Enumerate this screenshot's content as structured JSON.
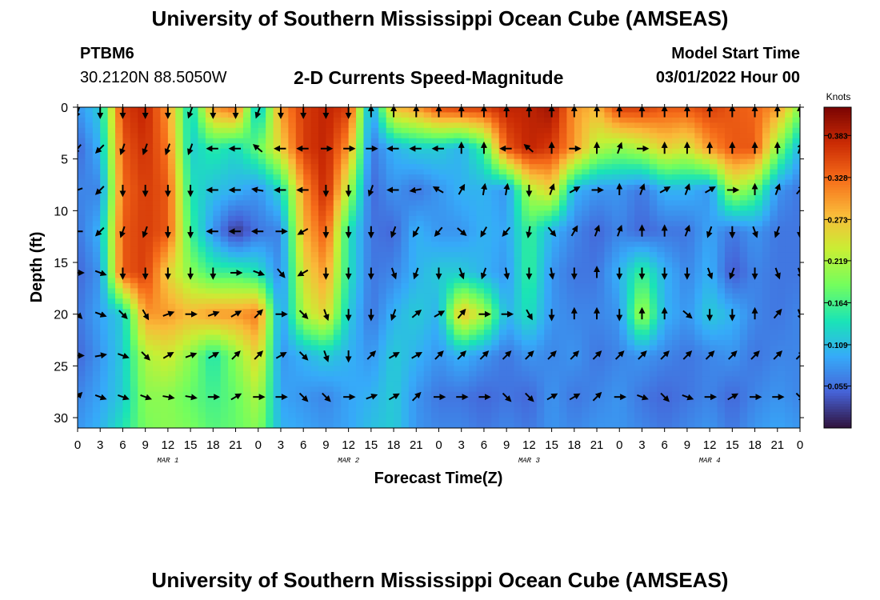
{
  "header": {
    "title": "University of Southern Mississippi Ocean Cube (AMSEAS)",
    "station": "PTBM6",
    "coordinates": "30.2120N  88.5050W",
    "subtitle": "2-D Currents Speed-Magnitude",
    "model_start_label": "Model Start Time",
    "model_start_value": "03/01/2022 Hour 00"
  },
  "footer": {
    "title": "University of Southern Mississippi Ocean Cube (AMSEAS)"
  },
  "chart_data": {
    "type": "heatmap",
    "title": "2-D Currents Speed-Magnitude",
    "xlabel": "Forecast Time(Z)",
    "ylabel": "Depth (ft)",
    "x_hours": [
      0,
      96
    ],
    "ylim": [
      0,
      31
    ],
    "y_inverted": true,
    "x_ticks": [
      "0",
      "3",
      "6",
      "9",
      "12",
      "15",
      "18",
      "21",
      "0",
      "3",
      "6",
      "9",
      "12",
      "15",
      "18",
      "21",
      "0",
      "3",
      "6",
      "9",
      "12",
      "15",
      "18",
      "21",
      "0",
      "3",
      "6",
      "9",
      "12",
      "15",
      "18",
      "21",
      "0"
    ],
    "y_ticks": [
      0,
      5,
      10,
      15,
      20,
      25,
      30
    ],
    "day_labels": [
      {
        "label": "MAR 1",
        "hour": 12
      },
      {
        "label": "MAR 2",
        "hour": 36
      },
      {
        "label": "MAR 3",
        "hour": 60
      },
      {
        "label": "MAR 4",
        "hour": 84
      }
    ],
    "colorbar": {
      "title": "Knots",
      "range": [
        0.0,
        0.42
      ],
      "ticks": [
        "0.055",
        "0.109",
        "0.164",
        "0.219",
        "0.273",
        "0.328",
        "0.383"
      ]
    },
    "colormap": [
      "#30123b",
      "#4662d7",
      "#36aaf9",
      "#1ae4b6",
      "#72fe5e",
      "#c8ef34",
      "#faba39",
      "#f66b19",
      "#ca2a04",
      "#7a0403"
    ],
    "arrow_depths": [
      0,
      4,
      8,
      12,
      16,
      20,
      24,
      28
    ],
    "speed_grid": {
      "description_hours": [
        0,
        3,
        6,
        9,
        12,
        15,
        18,
        21,
        24,
        27,
        30,
        33,
        36,
        39,
        42,
        45,
        48,
        51,
        54,
        57,
        60,
        63,
        66,
        69,
        72,
        75,
        78,
        81,
        84,
        87,
        90,
        93,
        96
      ],
      "depths": [
        0,
        4,
        8,
        12,
        16,
        20,
        24,
        28,
        31
      ],
      "values": [
        [
          0.08,
          0.12,
          0.36,
          0.38,
          0.3,
          0.12,
          0.3,
          0.33,
          0.1,
          0.3,
          0.36,
          0.38,
          0.36,
          0.08,
          0.28,
          0.3,
          0.35,
          0.36,
          0.36,
          0.38,
          0.38,
          0.4,
          0.3,
          0.28,
          0.36,
          0.36,
          0.34,
          0.34,
          0.36,
          0.34,
          0.33,
          0.3,
          0.2
        ],
        [
          0.05,
          0.1,
          0.34,
          0.37,
          0.32,
          0.12,
          0.15,
          0.13,
          0.18,
          0.26,
          0.36,
          0.38,
          0.3,
          0.06,
          0.1,
          0.12,
          0.12,
          0.1,
          0.16,
          0.34,
          0.38,
          0.36,
          0.3,
          0.22,
          0.2,
          0.22,
          0.26,
          0.24,
          0.3,
          0.34,
          0.34,
          0.2,
          0.1
        ],
        [
          0.07,
          0.07,
          0.33,
          0.36,
          0.34,
          0.14,
          0.11,
          0.1,
          0.08,
          0.13,
          0.3,
          0.38,
          0.22,
          0.05,
          0.08,
          0.06,
          0.08,
          0.1,
          0.1,
          0.08,
          0.22,
          0.26,
          0.1,
          0.08,
          0.08,
          0.06,
          0.1,
          0.1,
          0.08,
          0.22,
          0.18,
          0.08,
          0.06
        ],
        [
          0.06,
          0.1,
          0.34,
          0.36,
          0.34,
          0.16,
          0.08,
          0.02,
          0.06,
          0.07,
          0.28,
          0.34,
          0.14,
          0.06,
          0.05,
          0.1,
          0.08,
          0.08,
          0.1,
          0.09,
          0.16,
          0.1,
          0.07,
          0.05,
          0.07,
          0.05,
          0.06,
          0.06,
          0.09,
          0.06,
          0.08,
          0.06,
          0.06
        ],
        [
          0.05,
          0.08,
          0.34,
          0.36,
          0.26,
          0.2,
          0.16,
          0.16,
          0.14,
          0.07,
          0.25,
          0.3,
          0.14,
          0.06,
          0.07,
          0.1,
          0.12,
          0.12,
          0.1,
          0.08,
          0.16,
          0.08,
          0.06,
          0.06,
          0.1,
          0.16,
          0.1,
          0.07,
          0.1,
          0.04,
          0.07,
          0.06,
          0.06
        ],
        [
          0.06,
          0.09,
          0.12,
          0.3,
          0.3,
          0.28,
          0.3,
          0.3,
          0.32,
          0.08,
          0.22,
          0.26,
          0.12,
          0.06,
          0.1,
          0.12,
          0.1,
          0.28,
          0.22,
          0.1,
          0.14,
          0.08,
          0.07,
          0.07,
          0.08,
          0.22,
          0.1,
          0.08,
          0.12,
          0.1,
          0.07,
          0.06,
          0.07
        ],
        [
          0.05,
          0.08,
          0.12,
          0.22,
          0.24,
          0.2,
          0.14,
          0.2,
          0.26,
          0.08,
          0.1,
          0.12,
          0.1,
          0.08,
          0.12,
          0.1,
          0.08,
          0.1,
          0.08,
          0.06,
          0.08,
          0.07,
          0.08,
          0.06,
          0.07,
          0.08,
          0.07,
          0.06,
          0.07,
          0.08,
          0.06,
          0.07,
          0.07
        ],
        [
          0.07,
          0.09,
          0.12,
          0.2,
          0.2,
          0.18,
          0.16,
          0.18,
          0.22,
          0.09,
          0.08,
          0.07,
          0.09,
          0.1,
          0.12,
          0.08,
          0.06,
          0.06,
          0.05,
          0.06,
          0.05,
          0.08,
          0.06,
          0.07,
          0.08,
          0.06,
          0.05,
          0.06,
          0.07,
          0.05,
          0.07,
          0.08,
          0.07
        ],
        [
          0.08,
          0.1,
          0.14,
          0.19,
          0.2,
          0.19,
          0.17,
          0.18,
          0.2,
          0.1,
          0.09,
          0.08,
          0.09,
          0.11,
          0.12,
          0.08,
          0.07,
          0.07,
          0.06,
          0.07,
          0.06,
          0.08,
          0.07,
          0.08,
          0.08,
          0.07,
          0.06,
          0.07,
          0.08,
          0.06,
          0.08,
          0.09,
          0.08
        ]
      ]
    },
    "arrow_directions_deg": {
      "note": "compass direction the current flows toward (0=up/north, 90=right/east, 180=down/south, 270=left/west)",
      "values": [
        [
          200,
          180,
          180,
          180,
          180,
          200,
          180,
          180,
          200,
          180,
          180,
          180,
          180,
          0,
          0,
          0,
          0,
          0,
          0,
          0,
          0,
          0,
          0,
          0,
          0,
          0,
          0,
          0,
          0,
          0,
          0,
          0,
          0
        ],
        [
          220,
          225,
          200,
          200,
          200,
          200,
          270,
          270,
          310,
          270,
          270,
          90,
          90,
          90,
          270,
          270,
          270,
          0,
          0,
          270,
          310,
          0,
          90,
          0,
          20,
          90,
          0,
          0,
          0,
          0,
          0,
          0,
          20
        ],
        [
          250,
          225,
          180,
          180,
          180,
          180,
          270,
          270,
          280,
          270,
          270,
          180,
          180,
          200,
          270,
          260,
          300,
          30,
          10,
          10,
          180,
          20,
          60,
          90,
          0,
          20,
          60,
          20,
          60,
          90,
          0,
          20,
          40
        ],
        [
          270,
          225,
          200,
          200,
          180,
          180,
          270,
          270,
          270,
          90,
          240,
          180,
          180,
          180,
          200,
          210,
          220,
          130,
          210,
          220,
          190,
          140,
          30,
          20,
          20,
          0,
          0,
          20,
          200,
          180,
          160,
          200,
          180
        ],
        [
          90,
          110,
          180,
          180,
          180,
          180,
          180,
          90,
          110,
          140,
          240,
          180,
          180,
          180,
          160,
          200,
          180,
          160,
          200,
          170,
          180,
          170,
          180,
          0,
          180,
          180,
          180,
          180,
          160,
          200,
          180,
          160,
          160
        ],
        [
          135,
          110,
          135,
          150,
          70,
          90,
          70,
          60,
          45,
          90,
          135,
          160,
          180,
          180,
          200,
          50,
          60,
          40,
          90,
          90,
          150,
          180,
          0,
          0,
          180,
          0,
          0,
          130,
          180,
          180,
          0,
          40,
          160
        ],
        [
          90,
          80,
          110,
          135,
          60,
          70,
          60,
          45,
          45,
          60,
          135,
          160,
          180,
          45,
          60,
          60,
          45,
          45,
          45,
          45,
          45,
          45,
          45,
          45,
          45,
          45,
          45,
          45,
          45,
          45,
          45,
          45,
          45
        ],
        [
          45,
          110,
          110,
          110,
          100,
          100,
          90,
          60,
          90,
          90,
          135,
          135,
          90,
          70,
          60,
          45,
          90,
          90,
          90,
          135,
          135,
          60,
          60,
          45,
          90,
          110,
          135,
          110,
          90,
          60,
          90,
          90,
          135
        ]
      ]
    }
  }
}
